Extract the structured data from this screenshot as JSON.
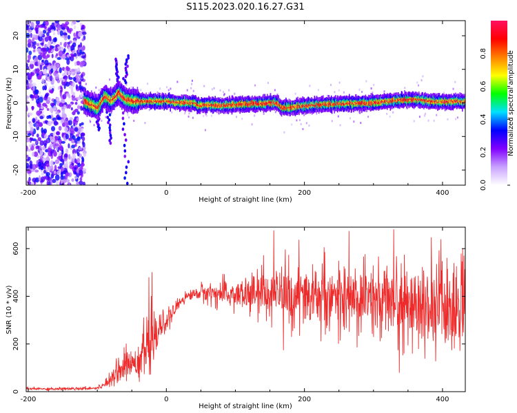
{
  "title": "S115.2023.020.16.27.G31",
  "chart_data": [
    {
      "type": "heatmap",
      "xlabel": "Height of straight line (km)",
      "ylabel": "Frequency (Hz)",
      "xlim": [
        -203,
        433
      ],
      "ylim": [
        -24.5,
        24.5
      ],
      "xticks": [
        -200,
        0,
        200,
        400
      ],
      "yticks": [
        -20,
        -10,
        0,
        10,
        20
      ],
      "colorbar": {
        "label": "Normalized spectral amplitude",
        "range": [
          0.0,
          1.0
        ],
        "ticks": [
          "0.0",
          "0.2",
          "0.4",
          "0.6",
          "0.8"
        ],
        "tick_values": [
          0.0,
          0.2,
          0.4,
          0.6,
          0.8
        ],
        "colormap": [
          "#ffffff",
          "#c8a2ff",
          "#8000ff",
          "#0000ff",
          "#00e0ff",
          "#00ff00",
          "#ffff00",
          "#ff8000",
          "#ff0000",
          "#ff1060"
        ]
      },
      "ridge": {
        "description_points_x": [
          -120,
          -100,
          -90,
          -80,
          -70,
          -60,
          -50,
          -40,
          -20,
          0,
          20,
          40,
          45,
          60,
          80,
          100,
          120,
          140,
          150,
          160,
          165,
          180,
          200,
          220,
          260,
          300,
          320,
          340,
          360,
          380,
          400,
          420,
          433
        ],
        "description_points_y": [
          0.5,
          -1.5,
          2,
          0.5,
          3,
          1,
          0.5,
          0.5,
          0.5,
          0.5,
          0,
          0,
          -0.8,
          -0.5,
          -0.8,
          -0.5,
          -0.3,
          -0.3,
          0,
          0,
          -1.4,
          -1.4,
          -0.8,
          -0.5,
          -0.2,
          0,
          0.5,
          0.8,
          1,
          0.5,
          0.3,
          0.5,
          0.3
        ]
      }
    },
    {
      "type": "line",
      "xlabel": "Height of straight line (km)",
      "ylabel": "SNR (10 * v/v)",
      "xlim": [
        -203,
        433
      ],
      "ylim": [
        0,
        690
      ],
      "xticks": [
        -200,
        0,
        200,
        400
      ],
      "yticks": [
        0,
        200,
        400,
        600
      ],
      "color": "#ee2a2a",
      "series": [
        {
          "x": [
            -200,
            -150,
            -100,
            -90,
            -80,
            -70,
            -60,
            -50,
            -40,
            -30,
            -20,
            -10,
            0,
            10,
            20,
            30,
            40,
            50,
            60,
            70,
            80,
            100,
            120,
            140,
            160,
            180,
            200,
            220,
            240,
            260,
            280,
            300,
            320,
            340,
            360,
            380,
            400,
            420,
            433
          ],
          "y": [
            12,
            12,
            15,
            30,
            60,
            90,
            110,
            120,
            140,
            180,
            200,
            260,
            300,
            330,
            380,
            400,
            410,
            415,
            415,
            410,
            410,
            405,
            405,
            410,
            405,
            405,
            400,
            400,
            400,
            395,
            395,
            390,
            390,
            380,
            370,
            360,
            350,
            340,
            330
          ],
          "spread": [
            6,
            6,
            6,
            15,
            30,
            50,
            60,
            60,
            80,
            90,
            110,
            60,
            40,
            30,
            25,
            20,
            20,
            35,
            40,
            50,
            55,
            60,
            80,
            100,
            110,
            110,
            110,
            110,
            120,
            120,
            130,
            130,
            140,
            150,
            150,
            160,
            170,
            180,
            180
          ]
        }
      ]
    }
  ]
}
